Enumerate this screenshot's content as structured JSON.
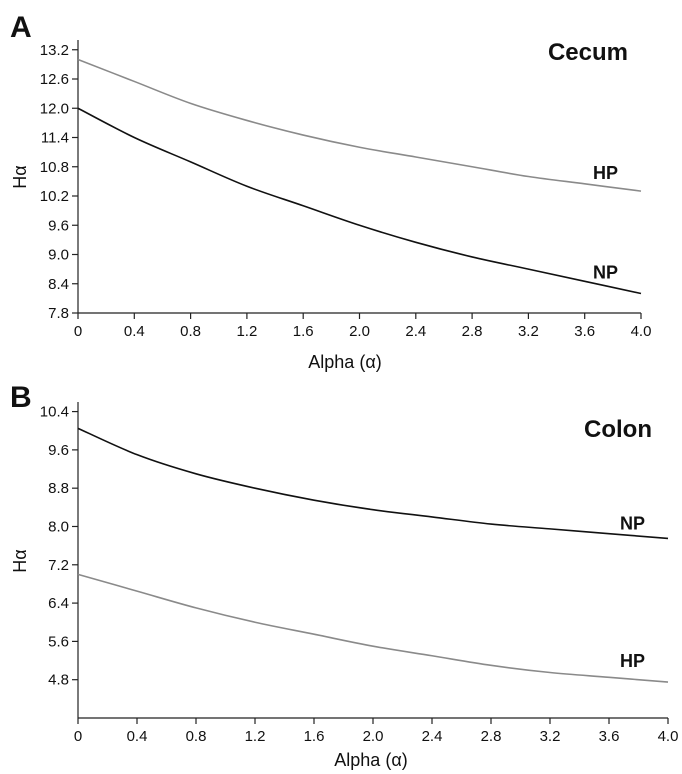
{
  "chart_data": [
    {
      "panel": "A",
      "type": "line",
      "title": "Cecum",
      "xlabel": "Alpha (α)",
      "ylabel": "Hα",
      "xlim": [
        0,
        4.0
      ],
      "ylim": [
        7.8,
        13.4
      ],
      "xticks": [
        "0",
        "0.4",
        "0.8",
        "1.2",
        "1.6",
        "2.0",
        "2.4",
        "2.8",
        "3.2",
        "3.6",
        "4.0"
      ],
      "yticks": [
        "7.8",
        "8.4",
        "9.0",
        "9.6",
        "10.2",
        "10.8",
        "11.4",
        "12.0",
        "12.6",
        "13.2"
      ],
      "grid": false,
      "legend": "none",
      "series": [
        {
          "name": "HP",
          "color": "#8a8a8a",
          "x": [
            0,
            0.4,
            0.8,
            1.2,
            1.6,
            2.0,
            2.4,
            2.8,
            3.2,
            3.6,
            4.0
          ],
          "y": [
            13.0,
            12.55,
            12.1,
            11.75,
            11.45,
            11.2,
            11.0,
            10.8,
            10.6,
            10.45,
            10.3
          ]
        },
        {
          "name": "NP",
          "color": "#111111",
          "x": [
            0,
            0.4,
            0.8,
            1.2,
            1.6,
            2.0,
            2.4,
            2.8,
            3.2,
            3.6,
            4.0
          ],
          "y": [
            12.0,
            11.4,
            10.9,
            10.4,
            10.0,
            9.6,
            9.25,
            8.95,
            8.7,
            8.45,
            8.2
          ]
        }
      ]
    },
    {
      "panel": "B",
      "type": "line",
      "title": "Colon",
      "xlabel": "Alpha (α)",
      "ylabel": "Hα",
      "xlim": [
        0,
        4.0
      ],
      "ylim": [
        4.0,
        10.6
      ],
      "xticks": [
        "0",
        "0.4",
        "0.8",
        "1.2",
        "1.6",
        "2.0",
        "2.4",
        "2.8",
        "3.2",
        "3.6",
        "4.0"
      ],
      "yticks": [
        "4.8",
        "5.6",
        "6.4",
        "7.2",
        "8.0",
        "8.8",
        "9.6",
        "10.4"
      ],
      "grid": false,
      "legend": "none",
      "series": [
        {
          "name": "NP",
          "color": "#111111",
          "x": [
            0,
            0.4,
            0.8,
            1.2,
            1.6,
            2.0,
            2.4,
            2.8,
            3.2,
            3.6,
            4.0
          ],
          "y": [
            10.05,
            9.5,
            9.1,
            8.8,
            8.55,
            8.35,
            8.2,
            8.05,
            7.95,
            7.85,
            7.75
          ]
        },
        {
          "name": "HP",
          "color": "#8a8a8a",
          "x": [
            0,
            0.4,
            0.8,
            1.2,
            1.6,
            2.0,
            2.4,
            2.8,
            3.2,
            3.6,
            4.0
          ],
          "y": [
            7.0,
            6.65,
            6.3,
            6.0,
            5.75,
            5.5,
            5.3,
            5.1,
            4.95,
            4.85,
            4.75
          ]
        }
      ]
    }
  ]
}
